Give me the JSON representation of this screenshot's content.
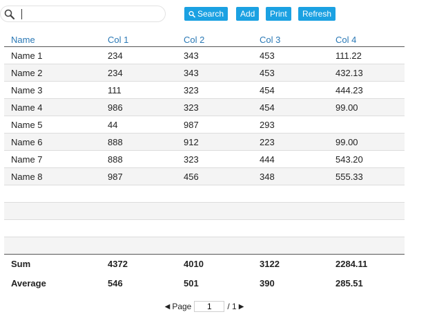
{
  "toolbar": {
    "search_value": "",
    "buttons": {
      "search": "Search",
      "add": "Add",
      "print": "Print",
      "refresh": "Refresh"
    },
    "accent_color": "#1ba1e2"
  },
  "grid": {
    "columns": [
      "Name",
      "Col 1",
      "Col 2",
      "Col 3",
      "Col 4"
    ],
    "rows": [
      [
        "Name 1",
        "234",
        "343",
        "453",
        "111.22"
      ],
      [
        "Name 2",
        "234",
        "343",
        "453",
        "432.13"
      ],
      [
        "Name 3",
        "111",
        "323",
        "454",
        "444.23"
      ],
      [
        "Name 4",
        "986",
        "323",
        "454",
        "99.00"
      ],
      [
        "Name 5",
        "44",
        "987",
        "293",
        ""
      ],
      [
        "Name 6",
        "888",
        "912",
        "223",
        "99.00"
      ],
      [
        "Name 7",
        "888",
        "323",
        "444",
        "543.20"
      ],
      [
        "Name 8",
        "987",
        "456",
        "348",
        "555.33"
      ]
    ],
    "summary": [
      [
        "Sum",
        "4372",
        "4010",
        "3122",
        "2284.11"
      ],
      [
        "Average",
        "546",
        "501",
        "390",
        "285.51"
      ]
    ]
  },
  "pager": {
    "label": "Page",
    "current_page": "1",
    "total": "/ 1"
  }
}
